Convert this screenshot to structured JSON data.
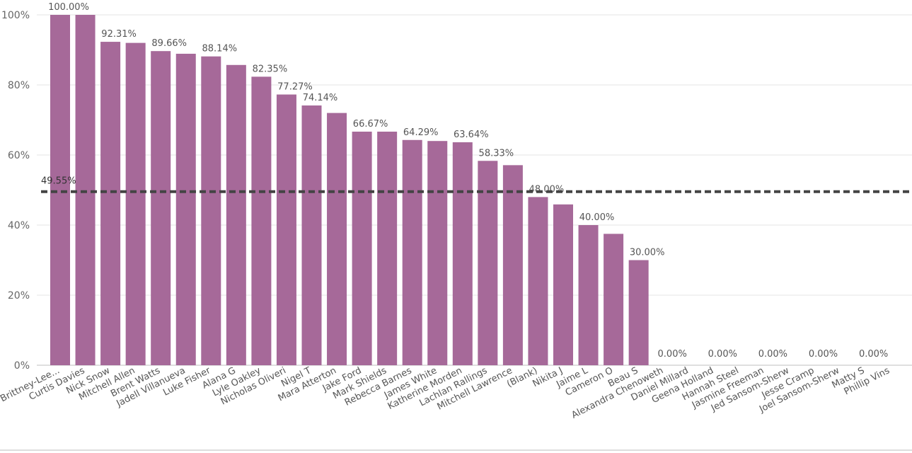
{
  "chart_data": {
    "type": "bar",
    "categories": [
      "Brittney-Lee...",
      "Curtis Davies",
      "Nick Snow",
      "Mitchell Allen",
      "Brent Watts",
      "Jadell Villanueva",
      "Luke Fisher",
      "Alana G",
      "Lyle Oakley",
      "Nicholas Oliveri",
      "Nigel T",
      "Mara Atterton",
      "Jake Ford",
      "Mark Shields",
      "Rebecca Barnes",
      "James White",
      "Katherine Morden",
      "Lachlan Rallings",
      "Mitchell Lawrence",
      "(Blank)",
      "Nikita J",
      "Jaime L",
      "Cameron O",
      "Beau S",
      "Alexandra Chenoweth",
      "Daniel Millard",
      "Geena Holland",
      "Hannah Steel",
      "Jasmine Freeman",
      "Jed Sansom-Sherw",
      "Jesse Cramp",
      "Joel Sansom-Sherw",
      "Matty S",
      "Phillip Vins"
    ],
    "values": [
      100.0,
      100.0,
      92.31,
      92.0,
      89.66,
      88.9,
      88.14,
      85.7,
      82.35,
      77.27,
      74.14,
      72.0,
      66.67,
      66.67,
      64.29,
      64.0,
      63.64,
      58.33,
      57.1,
      48.0,
      45.9,
      40.0,
      37.5,
      30.0,
      0,
      0,
      0,
      0,
      0,
      0,
      0,
      0,
      0,
      0
    ],
    "data_labels": [
      "100.00%",
      "",
      "92.31%",
      "",
      "89.66%",
      "",
      "88.14%",
      "",
      "82.35%",
      "77.27%",
      "74.14%",
      "",
      "66.67%",
      "",
      "64.29%",
      "",
      "63.64%",
      "58.33%",
      "",
      "48.00%",
      "",
      "40.00%",
      "",
      "30.00%",
      "0.00%",
      "",
      "0.00%",
      "",
      "0.00%",
      "",
      "0.00%",
      "",
      "0.00%",
      ""
    ],
    "average_line": {
      "value": 49.55,
      "label": "49.55%",
      "style": "dashed"
    },
    "y_ticks": [
      "0%",
      "20%",
      "40%",
      "60%",
      "80%",
      "100%"
    ],
    "ylim": [
      0,
      100
    ],
    "grid": true,
    "bar_color": "#a66999",
    "avg_line_color": "#444444",
    "title": "",
    "xlabel": "",
    "ylabel": ""
  }
}
